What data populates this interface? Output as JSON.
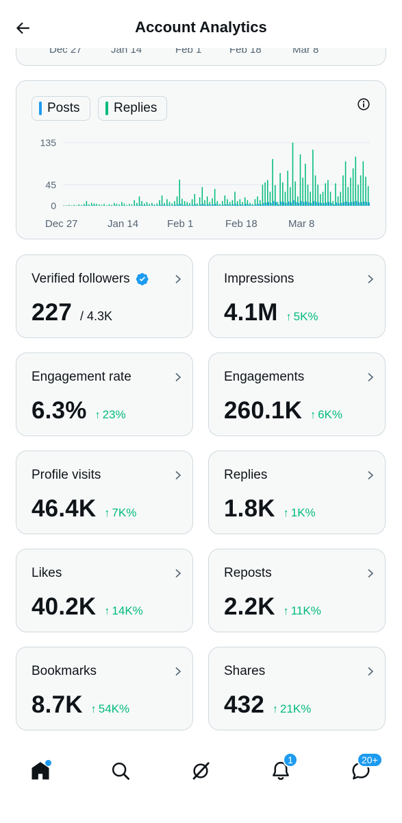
{
  "header": {
    "title": "Account Analytics",
    "back_icon": "arrow-left-icon"
  },
  "previous_chart": {
    "x_labels": [
      "Dec 27",
      "Jan 14",
      "Feb 1",
      "Feb 18",
      "Mar 8"
    ]
  },
  "chart": {
    "legend": [
      {
        "label": "Posts",
        "color": "#1d9bf0"
      },
      {
        "label": "Replies",
        "color": "#00ba7c"
      }
    ],
    "info_icon": "info-icon"
  },
  "chart_data": {
    "type": "bar",
    "title": "",
    "x_tick_labels": [
      "Dec 27",
      "Jan 14",
      "Feb 1",
      "Feb 18",
      "Mar 8"
    ],
    "y_tick_labels": [
      "135",
      "45",
      "0"
    ],
    "ylim": [
      0,
      135
    ],
    "grid": true,
    "legend_position": "top-left",
    "series": [
      {
        "name": "Replies",
        "color": "#00ba7c",
        "values": [
          1,
          1,
          2,
          1,
          2,
          1,
          3,
          2,
          4,
          10,
          3,
          6,
          5,
          4,
          3,
          2,
          4,
          1,
          3,
          2,
          6,
          4,
          3,
          8,
          5,
          2,
          4,
          3,
          12,
          6,
          20,
          10,
          5,
          8,
          4,
          6,
          3,
          5,
          12,
          22,
          6,
          14,
          8,
          5,
          10,
          20,
          56,
          15,
          10,
          8,
          6,
          14,
          25,
          5,
          18,
          40,
          12,
          20,
          8,
          16,
          36,
          10,
          4,
          10,
          22,
          14,
          8,
          12,
          30,
          10,
          14,
          8,
          18,
          12,
          6,
          4,
          14,
          20,
          12,
          45,
          50,
          55,
          30,
          100,
          44,
          8,
          70,
          50,
          30,
          75,
          40,
          135,
          52,
          20,
          110,
          60,
          90,
          45,
          30,
          120,
          65,
          45,
          25,
          30,
          48,
          55,
          30,
          10,
          48,
          20,
          30,
          65,
          95,
          40,
          60,
          80,
          105,
          45,
          65,
          95,
          62,
          42
        ]
      },
      {
        "name": "Posts",
        "color": "#1d9bf0",
        "values": [
          0,
          0,
          0,
          0,
          0,
          0,
          0,
          0,
          1,
          1,
          0,
          1,
          1,
          0,
          0,
          0,
          0,
          0,
          0,
          0,
          1,
          0,
          0,
          1,
          0,
          0,
          0,
          0,
          1,
          1,
          2,
          1,
          1,
          1,
          0,
          1,
          0,
          1,
          2,
          2,
          1,
          2,
          1,
          1,
          2,
          3,
          4,
          2,
          2,
          2,
          1,
          2,
          3,
          1,
          3,
          4,
          2,
          3,
          2,
          3,
          4,
          2,
          1,
          2,
          3,
          3,
          2,
          3,
          4,
          2,
          3,
          2,
          4,
          3,
          2,
          1,
          3,
          4,
          3,
          6,
          7,
          8,
          6,
          10,
          8,
          3,
          9,
          8,
          6,
          9,
          7,
          12,
          8,
          6,
          10,
          8,
          9,
          7,
          6,
          10,
          8,
          7,
          6,
          6,
          7,
          8,
          6,
          3,
          7,
          5,
          6,
          8,
          9,
          7,
          8,
          9,
          10,
          7,
          8,
          9,
          8,
          7
        ]
      }
    ]
  },
  "metrics": [
    {
      "label": "Verified followers",
      "value": "227",
      "total": "/ 4.3K",
      "verified": true
    },
    {
      "label": "Impressions",
      "value": "4.1M",
      "delta": "5K%"
    },
    {
      "label": "Engagement rate",
      "value": "6.3%",
      "delta": "23%"
    },
    {
      "label": "Engagements",
      "value": "260.1K",
      "delta": "6K%"
    },
    {
      "label": "Profile visits",
      "value": "46.4K",
      "delta": "7K%"
    },
    {
      "label": "Replies",
      "value": "1.8K",
      "delta": "1K%"
    },
    {
      "label": "Likes",
      "value": "40.2K",
      "delta": "14K%"
    },
    {
      "label": "Reposts",
      "value": "2.2K",
      "delta": "11K%"
    },
    {
      "label": "Bookmarks",
      "value": "8.7K",
      "delta": "54K%"
    },
    {
      "label": "Shares",
      "value": "432",
      "delta": "21K%"
    }
  ],
  "bottom_nav": {
    "items": [
      "home-icon",
      "search-icon",
      "grok-icon",
      "notifications-icon",
      "messages-icon"
    ],
    "notifications_badge": "1",
    "messages_badge": "20+"
  },
  "colors": {
    "accent": "#1d9bf0",
    "positive": "#00ba7c",
    "border": "#cfd9de",
    "card_bg": "#f7f9f9"
  }
}
